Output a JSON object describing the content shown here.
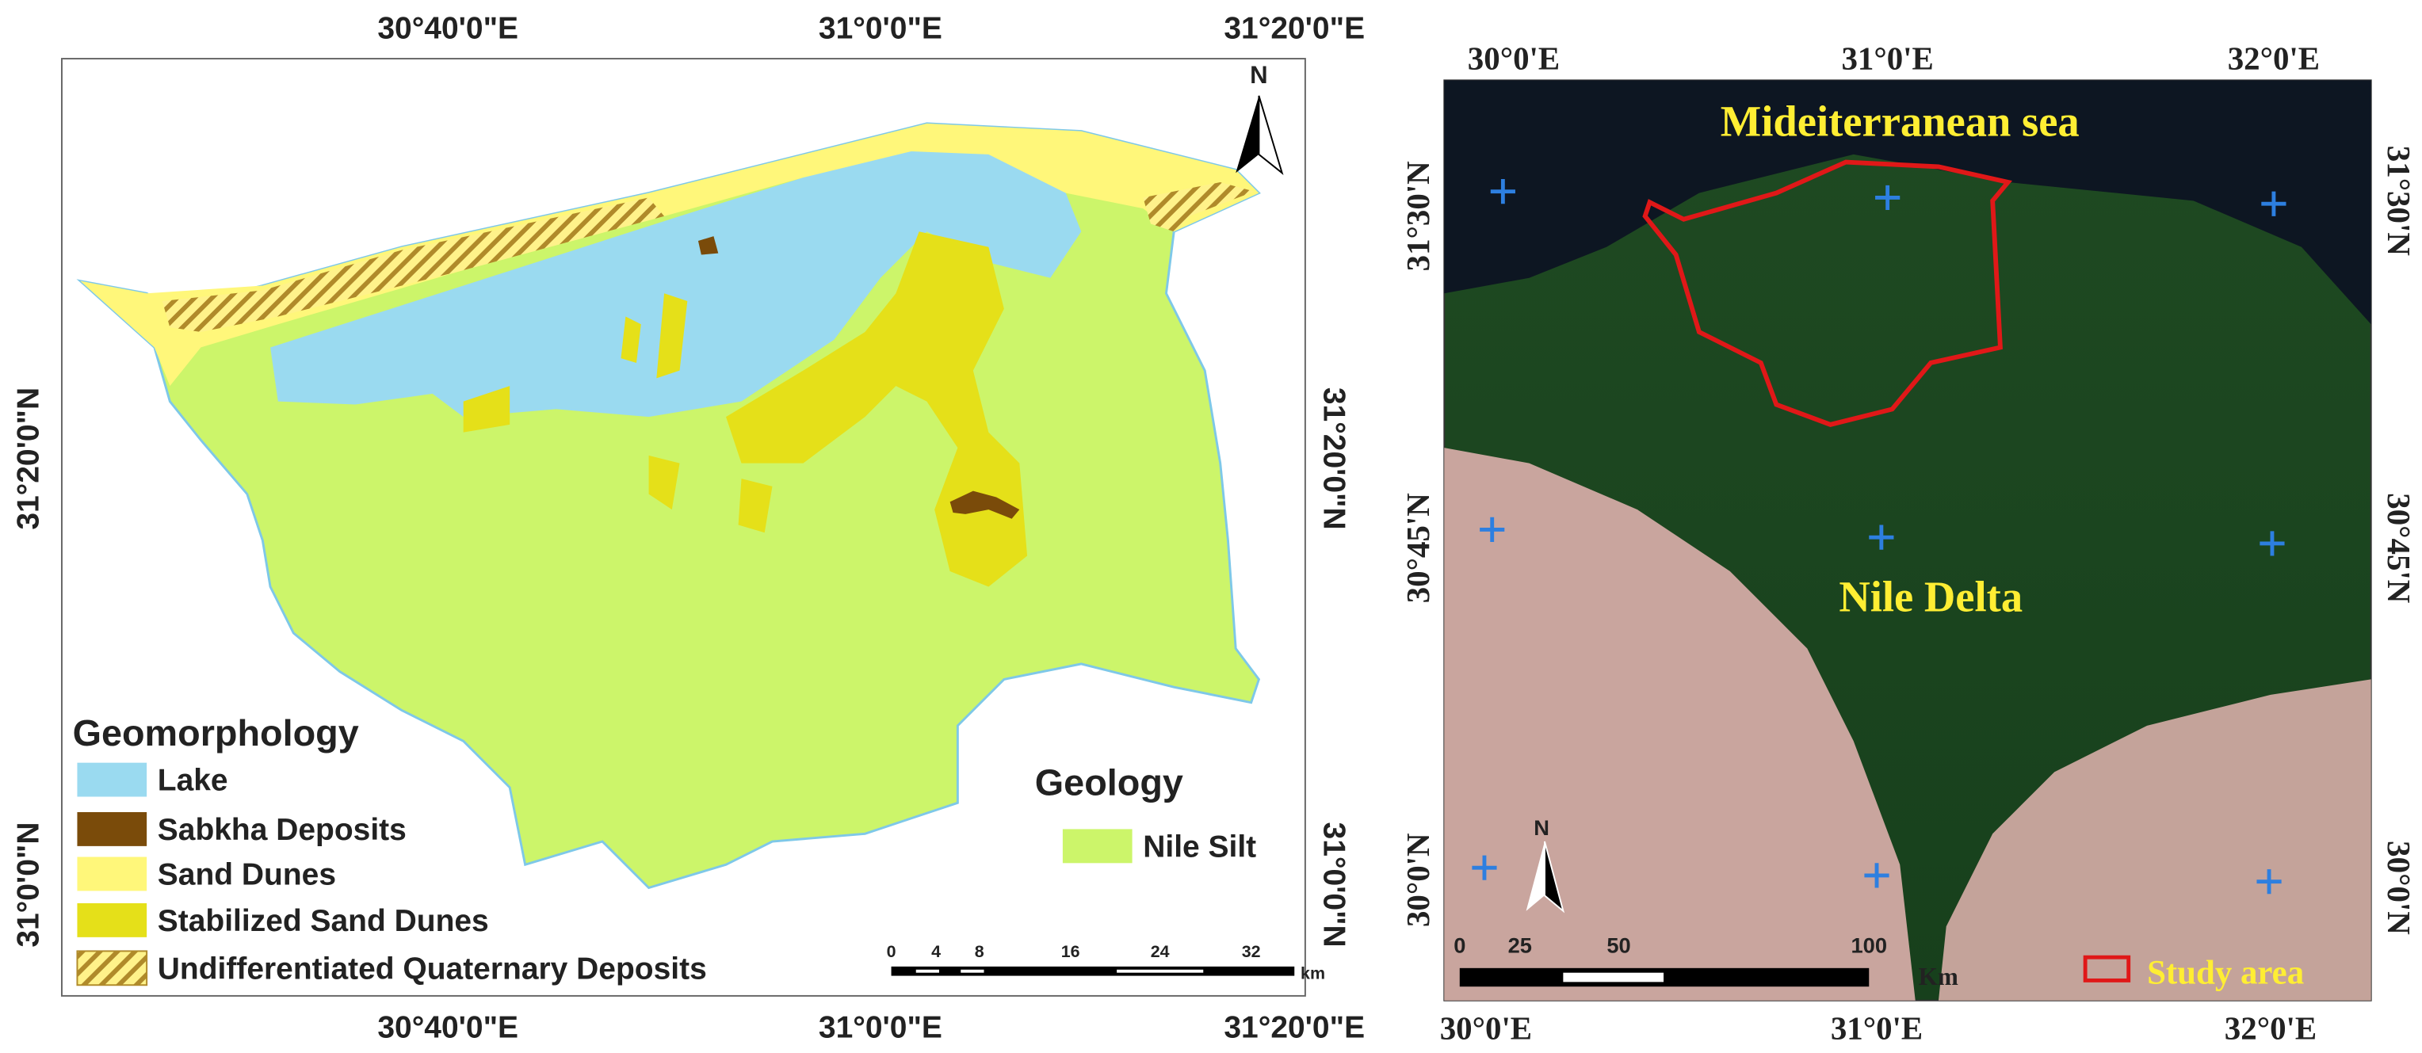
{
  "left_map": {
    "top_ticks": [
      "30°40'0\"E",
      "31°0'0\"E",
      "31°20'0\"E"
    ],
    "bottom_ticks": [
      "30°40'0\"E",
      "31°0'0\"E",
      "31°20'0\"E"
    ],
    "left_ticks": [
      "31°20'0\"N",
      "31°0'0\"N"
    ],
    "right_ticks": [
      "31°20'0\"N",
      "31°0'0\"N"
    ],
    "north": "N",
    "legend": {
      "title": "Geomorphology",
      "items": [
        "Lake",
        "Sabkha Deposits",
        "Sand Dunes",
        "Stabilized Sand Dunes",
        "Undifferentiated Quaternary Deposits"
      ]
    },
    "geology": {
      "title": "Geology",
      "items": [
        "Nile Silt"
      ]
    },
    "scale": {
      "labels": [
        "0",
        "4",
        "8",
        "16",
        "24",
        "32"
      ],
      "unit": "km"
    }
  },
  "right_map": {
    "top_ticks": [
      "30°0'E",
      "31°0'E",
      "32°0'E"
    ],
    "bottom_ticks": [
      "30°0'E",
      "31°0'E",
      "32°0'E"
    ],
    "left_ticks": [
      "31°30'N",
      "30°45'N",
      "30°0'N"
    ],
    "right_ticks": [
      "31°30'N",
      "30°45'N",
      "30°0'N"
    ],
    "sea_label": "Mideiterranean sea",
    "delta_label": "Nile Delta",
    "north": "N",
    "scale": {
      "labels": [
        "0",
        "25",
        "50",
        "100"
      ],
      "unit": "Km"
    },
    "legend": "Study area"
  }
}
